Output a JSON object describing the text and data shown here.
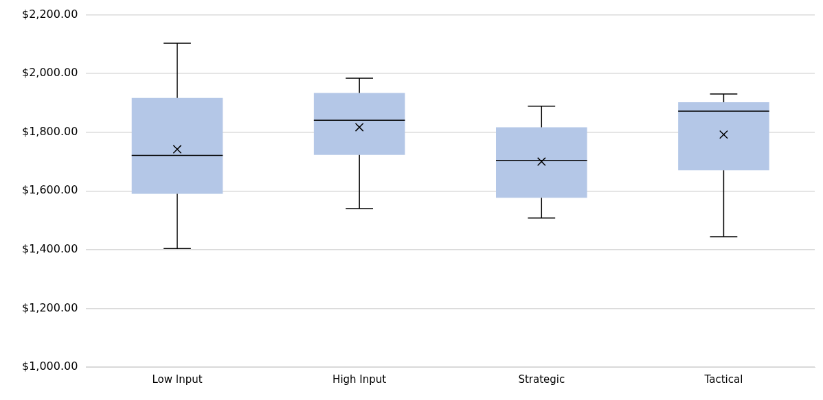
{
  "chart_data": {
    "type": "box",
    "categories": [
      "Low Input",
      "High Input",
      "Strategic",
      "Tactical"
    ],
    "boxes": [
      {
        "low": 1404,
        "q1": 1590,
        "median": 1721,
        "q3": 1917,
        "high": 2103,
        "mean": 1742
      },
      {
        "low": 1540,
        "q1": 1723,
        "median": 1841,
        "q3": 1934,
        "high": 1984,
        "mean": 1817
      },
      {
        "low": 1508,
        "q1": 1577,
        "median": 1704,
        "q3": 1817,
        "high": 1889,
        "mean": 1700
      },
      {
        "low": 1444,
        "q1": 1670,
        "median": 1872,
        "q3": 1902,
        "high": 1930,
        "mean": 1792
      }
    ],
    "color": "#b4c7e7",
    "ylim": [
      1000,
      2200
    ],
    "yticks": [
      {
        "value": 1000,
        "label": "$1,000.00"
      },
      {
        "value": 1200,
        "label": "$1,200.00"
      },
      {
        "value": 1400,
        "label": "$1,400.00"
      },
      {
        "value": 1600,
        "label": "$1,600.00"
      },
      {
        "value": 1800,
        "label": "$1,800.00"
      },
      {
        "value": 2000,
        "label": "$2,000.00"
      },
      {
        "value": 2200,
        "label": "$2,200.00"
      }
    ],
    "grid": "y"
  }
}
